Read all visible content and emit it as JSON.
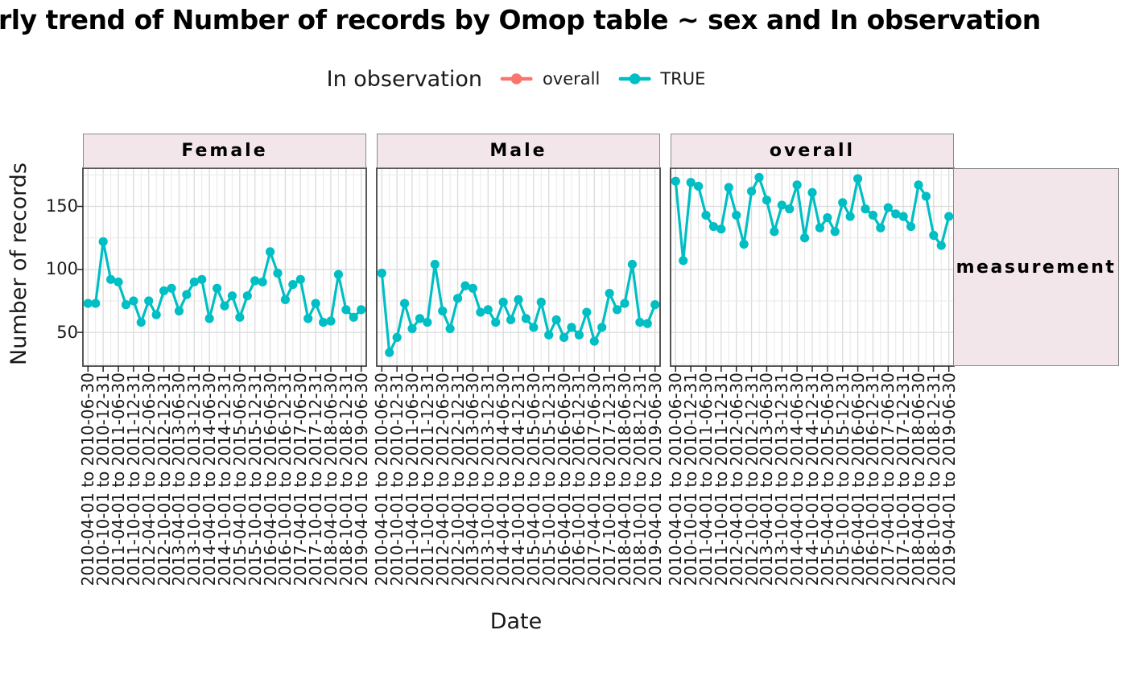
{
  "title": {
    "visible_text": "rly trend of Number of records by Omop table ~ sex and In observation"
  },
  "chart_data": {
    "type": "line",
    "title": "rly trend of Number of records by Omop table ~ sex and In observation",
    "xlabel": "Date",
    "ylabel": "Number of records",
    "row_facet_label": "measurement",
    "legend": {
      "title": "In observation",
      "position": "top",
      "entries": [
        {
          "label": "overall",
          "color": "#F8766D"
        },
        {
          "label": "TRUE",
          "color": "#00BFC4"
        }
      ]
    },
    "y_ticks": [
      50,
      100,
      150
    ],
    "y_tick_labels": [
      "50",
      "100",
      "150"
    ],
    "y_minor_ticks": [
      25,
      75,
      125,
      175
    ],
    "ylim": [
      23,
      180
    ],
    "grid": true,
    "x_points_per_facet": 37,
    "x_tick_every": 2,
    "x_tick_labels": [
      "2010-04-01 to 2010-06-30",
      "2010-10-01 to 2010-12-31",
      "2011-04-01 to 2011-06-30",
      "2011-10-01 to 2011-12-31",
      "2012-04-01 to 2012-06-30",
      "2012-10-01 to 2012-12-31",
      "2013-04-01 to 2013-06-30",
      "2013-10-01 to 2013-12-31",
      "2014-04-01 to 2014-06-30",
      "2014-10-01 to 2014-12-31",
      "2015-04-01 to 2015-06-30",
      "2015-10-01 to 2015-12-31",
      "2016-04-01 to 2016-06-30",
      "2016-10-01 to 2016-12-31",
      "2017-04-01 to 2017-06-30",
      "2017-10-01 to 2017-12-31",
      "2018-04-01 to 2018-06-30",
      "2018-10-01 to 2018-12-31",
      "2019-04-01 to 2019-06-30"
    ],
    "facets": [
      {
        "label": "Female",
        "series": [
          {
            "name": "TRUE",
            "values": [
              73,
              73,
              122,
              92,
              90,
              72,
              75,
              58,
              75,
              64,
              83,
              85,
              67,
              80,
              90,
              92,
              61,
              85,
              71,
              79,
              62,
              79,
              91,
              90,
              114,
              97,
              76,
              88,
              92,
              61,
              73,
              58,
              59,
              96,
              68,
              62,
              68
            ]
          }
        ]
      },
      {
        "label": "Male",
        "series": [
          {
            "name": "TRUE",
            "values": [
              97,
              34,
              46,
              73,
              53,
              61,
              58,
              104,
              67,
              53,
              77,
              87,
              85,
              66,
              68,
              58,
              74,
              60,
              76,
              61,
              54,
              74,
              48,
              60,
              46,
              54,
              48,
              66,
              43,
              54,
              81,
              68,
              73,
              104,
              58,
              57,
              72
            ]
          }
        ]
      },
      {
        "label": "overall",
        "series": [
          {
            "name": "TRUE",
            "values": [
              170,
              107,
              169,
              166,
              143,
              134,
              132,
              165,
              143,
              120,
              162,
              173,
              155,
              130,
              151,
              148,
              167,
              125,
              161,
              133,
              141,
              130,
              153,
              142,
              172,
              148,
              143,
              133,
              149,
              144,
              142,
              134,
              167,
              158,
              127,
              119,
              142
            ]
          }
        ]
      }
    ],
    "colors": {
      "series_true": "#00BFC4",
      "series_overall": "#F8766D",
      "strip_background": "#F3E6EB",
      "strip_border": "#8A8A8A",
      "panel_border": "#454545",
      "grid_major": "#DBDBDB",
      "grid_minor": "#E9E9E9"
    }
  }
}
